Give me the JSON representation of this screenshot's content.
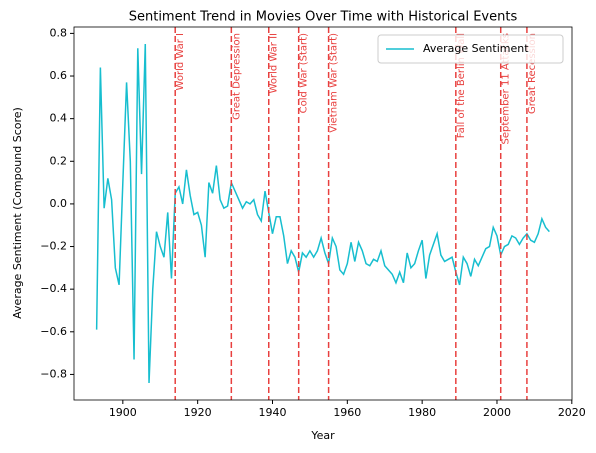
{
  "chart_data": {
    "type": "line",
    "title": "Sentiment Trend in Movies Over Time with Historical Events",
    "xlabel": "Year",
    "ylabel": "Average Sentiment (Compound Score)",
    "x": [
      1893,
      1894,
      1895,
      1896,
      1897,
      1898,
      1899,
      1900,
      1901,
      1902,
      1903,
      1904,
      1905,
      1906,
      1907,
      1908,
      1909,
      1910,
      1911,
      1912,
      1913,
      1914,
      1915,
      1916,
      1917,
      1918,
      1919,
      1920,
      1921,
      1922,
      1923,
      1924,
      1925,
      1926,
      1927,
      1928,
      1929,
      1930,
      1931,
      1932,
      1933,
      1934,
      1935,
      1936,
      1937,
      1938,
      1939,
      1940,
      1941,
      1942,
      1943,
      1944,
      1945,
      1946,
      1947,
      1948,
      1949,
      1950,
      1951,
      1952,
      1953,
      1954,
      1955,
      1956,
      1957,
      1958,
      1959,
      1960,
      1961,
      1962,
      1963,
      1964,
      1965,
      1966,
      1967,
      1968,
      1969,
      1970,
      1971,
      1972,
      1973,
      1974,
      1975,
      1976,
      1977,
      1978,
      1979,
      1980,
      1981,
      1982,
      1983,
      1984,
      1985,
      1986,
      1987,
      1988,
      1989,
      1990,
      1991,
      1992,
      1993,
      1994,
      1995,
      1996,
      1997,
      1998,
      1999,
      2000,
      2001,
      2002,
      2003,
      2004,
      2005,
      2006,
      2007,
      2008,
      2009,
      2010,
      2011,
      2012,
      2013,
      2014
    ],
    "series": [
      {
        "name": "Average Sentiment",
        "color": "#17becf",
        "values": [
          -0.59,
          0.64,
          -0.02,
          0.12,
          0.02,
          -0.3,
          -0.38,
          0.1,
          0.57,
          0.2,
          -0.73,
          0.73,
          0.14,
          0.75,
          -0.84,
          -0.4,
          -0.13,
          -0.2,
          -0.25,
          -0.04,
          -0.35,
          0.05,
          0.08,
          0.0,
          0.16,
          0.04,
          -0.05,
          -0.04,
          -0.1,
          -0.25,
          0.1,
          0.05,
          0.18,
          0.02,
          -0.02,
          -0.01,
          0.1,
          0.06,
          0.02,
          -0.02,
          0.01,
          0.0,
          0.02,
          -0.05,
          -0.08,
          0.06,
          -0.04,
          -0.14,
          -0.06,
          -0.06,
          -0.15,
          -0.28,
          -0.22,
          -0.25,
          -0.32,
          -0.23,
          -0.25,
          -0.22,
          -0.25,
          -0.22,
          -0.16,
          -0.23,
          -0.28,
          -0.16,
          -0.2,
          -0.31,
          -0.33,
          -0.28,
          -0.18,
          -0.27,
          -0.18,
          -0.22,
          -0.28,
          -0.29,
          -0.26,
          -0.27,
          -0.22,
          -0.29,
          -0.31,
          -0.33,
          -0.37,
          -0.32,
          -0.37,
          -0.23,
          -0.3,
          -0.28,
          -0.22,
          -0.17,
          -0.35,
          -0.24,
          -0.19,
          -0.14,
          -0.24,
          -0.27,
          -0.26,
          -0.25,
          -0.32,
          -0.38,
          -0.25,
          -0.28,
          -0.34,
          -0.26,
          -0.29,
          -0.25,
          -0.21,
          -0.2,
          -0.11,
          -0.15,
          -0.24,
          -0.2,
          -0.19,
          -0.15,
          -0.16,
          -0.19,
          -0.16,
          -0.14,
          -0.17,
          -0.18,
          -0.14,
          -0.07,
          -0.11,
          -0.13
        ]
      }
    ],
    "events": [
      {
        "name": "World War I",
        "year": 1914
      },
      {
        "name": "Great Depression",
        "year": 1929
      },
      {
        "name": "World War II",
        "year": 1939
      },
      {
        "name": "Cold War (Start)",
        "year": 1947
      },
      {
        "name": "Vietnam War (Start)",
        "year": 1955
      },
      {
        "name": "Fall of the Berlin Wall",
        "year": 1989
      },
      {
        "name": "September 11 Attacks",
        "year": 2001
      },
      {
        "name": "Great Recession",
        "year": 2008
      }
    ],
    "event_color": "#e8403f",
    "xlim": [
      1886.95,
      2020.05
    ],
    "ylim": [
      -0.92,
      0.83
    ],
    "xticks": [
      1900,
      1920,
      1940,
      1960,
      1980,
      2000,
      2020
    ],
    "yticks": [
      {
        "value": -0.8,
        "label": "−0.8"
      },
      {
        "value": -0.6,
        "label": "−0.6"
      },
      {
        "value": -0.4,
        "label": "−0.4"
      },
      {
        "value": -0.2,
        "label": "−0.2"
      },
      {
        "value": 0,
        "label": "0.0"
      },
      {
        "value": 0.2,
        "label": "0.2"
      },
      {
        "value": 0.4,
        "label": "0.4"
      },
      {
        "value": 0.6,
        "label": "0.6"
      },
      {
        "value": 0.8,
        "label": "0.8"
      }
    ],
    "legend": "upper right",
    "grid": false
  }
}
